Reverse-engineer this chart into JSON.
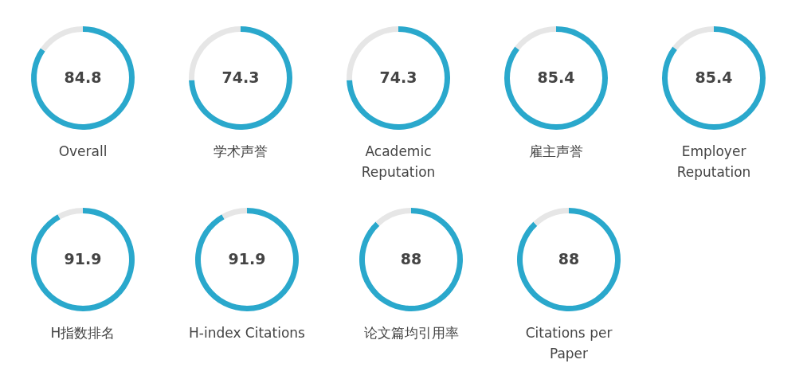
{
  "chart_data": [
    {
      "type": "donut",
      "title": "Overall",
      "categories": [
        null,
        null
      ],
      "values": [
        84.8,
        15.2
      ],
      "colors": [
        "#2aa8cc",
        "#e6e6e6"
      ],
      "value_labels": [
        "84.8",
        null
      ]
    },
    {
      "type": "donut",
      "title": "学术声誉",
      "categories": [
        null,
        null
      ],
      "values": [
        74.3,
        25.7
      ],
      "colors": [
        "#2aa8cc",
        "#e6e6e6"
      ],
      "value_labels": [
        "74.3",
        null
      ]
    },
    {
      "type": "donut",
      "title": "Academic Reputation",
      "categories": [
        null,
        null
      ],
      "values": [
        74.3,
        25.7
      ],
      "colors": [
        "#2aa8cc",
        "#e6e6e6"
      ],
      "value_labels": [
        "74.3",
        null
      ]
    },
    {
      "type": "donut",
      "title": "雇主声誉",
      "categories": [
        null,
        null
      ],
      "values": [
        85.4,
        14.6
      ],
      "colors": [
        "#2aa8cc",
        "#e6e6e6"
      ],
      "value_labels": [
        "85.4",
        null
      ]
    },
    {
      "type": "donut",
      "title": "Employer Reputation",
      "categories": [
        null,
        null
      ],
      "values": [
        85.4,
        14.6
      ],
      "colors": [
        "#2aa8cc",
        "#e6e6e6"
      ],
      "value_labels": [
        "85.4",
        null
      ]
    },
    {
      "type": "donut",
      "title": "H指数排名",
      "categories": [
        null,
        null
      ],
      "values": [
        91.9,
        8.1
      ],
      "colors": [
        "#2aa8cc",
        "#e6e6e6"
      ],
      "value_labels": [
        "91.9",
        null
      ]
    },
    {
      "type": "donut",
      "title": "H-index Citations",
      "categories": [
        null,
        null
      ],
      "values": [
        91.9,
        8.1
      ],
      "colors": [
        "#2aa8cc",
        "#e6e6e6"
      ],
      "value_labels": [
        "91.9",
        null
      ]
    },
    {
      "type": "donut",
      "title": "论文篇均引用率",
      "categories": [
        null,
        null
      ],
      "values": [
        88,
        12
      ],
      "colors": [
        "#2aa8cc",
        "#e6e6e6"
      ],
      "value_labels": [
        "88",
        null
      ]
    },
    {
      "type": "donut",
      "title": "Citations per Paper",
      "categories": [
        null,
        null
      ],
      "values": [
        88,
        12
      ],
      "colors": [
        "#2aa8cc",
        "#e6e6e6"
      ],
      "value_labels": [
        "88",
        null
      ]
    }
  ]
}
